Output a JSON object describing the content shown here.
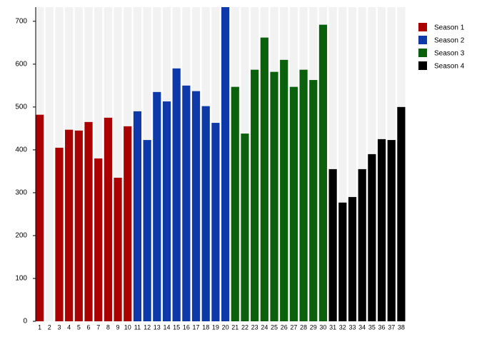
{
  "chart_data": {
    "type": "bar",
    "categories": [
      "1",
      "2",
      "3",
      "4",
      "5",
      "6",
      "7",
      "8",
      "9",
      "10",
      "11",
      "12",
      "13",
      "14",
      "15",
      "16",
      "17",
      "18",
      "19",
      "20",
      "21",
      "22",
      "23",
      "24",
      "25",
      "26",
      "27",
      "28",
      "29",
      "30",
      "31",
      "32",
      "33",
      "34",
      "35",
      "36",
      "37",
      "38"
    ],
    "series": [
      {
        "name": "Season 1",
        "color": "#aa0000",
        "values": [
          482,
          null,
          405,
          447,
          445,
          465,
          380,
          475,
          335,
          455,
          null,
          null,
          null,
          null,
          null,
          null,
          null,
          null,
          null,
          null,
          null,
          null,
          null,
          null,
          null,
          null,
          null,
          null,
          null,
          null,
          null,
          null,
          null,
          null,
          null,
          null,
          null,
          null
        ]
      },
      {
        "name": "Season 2",
        "color": "#0d3aa8",
        "values": [
          null,
          null,
          null,
          null,
          null,
          null,
          null,
          null,
          null,
          null,
          490,
          423,
          535,
          513,
          590,
          550,
          537,
          502,
          463,
          740,
          null,
          null,
          null,
          null,
          null,
          null,
          null,
          null,
          null,
          null,
          null,
          null,
          null,
          null,
          null,
          null,
          null,
          null
        ]
      },
      {
        "name": "Season 3",
        "color": "#0b610b",
        "values": [
          null,
          null,
          null,
          null,
          null,
          null,
          null,
          null,
          null,
          null,
          null,
          null,
          null,
          null,
          null,
          null,
          null,
          null,
          null,
          null,
          547,
          438,
          587,
          662,
          582,
          610,
          547,
          587,
          563,
          692,
          null,
          null,
          null,
          null,
          null,
          null,
          null,
          null
        ]
      },
      {
        "name": "Season 4",
        "color": "#000000",
        "values": [
          null,
          null,
          null,
          null,
          null,
          null,
          null,
          null,
          null,
          null,
          null,
          null,
          null,
          null,
          null,
          null,
          null,
          null,
          null,
          null,
          null,
          null,
          null,
          null,
          null,
          null,
          null,
          null,
          null,
          null,
          355,
          277,
          290,
          355,
          390,
          425,
          423,
          500
        ]
      }
    ],
    "ylim": [
      0,
      733
    ],
    "yticks": [
      0,
      100,
      200,
      300,
      400,
      500,
      600,
      700
    ],
    "legend": "top-right"
  }
}
